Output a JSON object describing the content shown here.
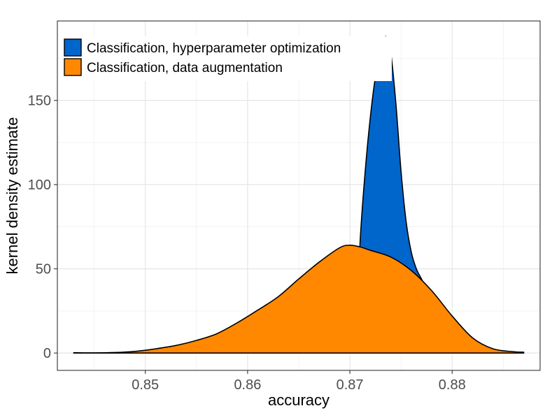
{
  "chart_data": {
    "type": "area",
    "xlabel": "accuracy",
    "ylabel": "kernel density estimate",
    "xlim": [
      0.8414,
      0.8886
    ],
    "ylim": [
      -10.3,
      197.2
    ],
    "x_ticks": [
      0.85,
      0.86,
      0.87,
      0.88
    ],
    "x_tick_labels": [
      "0.85",
      "0.86",
      "0.87",
      "0.88"
    ],
    "y_ticks": [
      0,
      50,
      100,
      150
    ],
    "y_tick_labels": [
      "0",
      "50",
      "100",
      "150"
    ],
    "grid": true,
    "legend_position": "top-left",
    "series": [
      {
        "name": "Classification, hyperparameter optimization",
        "color": "#0066cc",
        "x": [
          0.8705,
          0.871,
          0.8715,
          0.872,
          0.8725,
          0.873,
          0.8735,
          0.874,
          0.8745,
          0.875,
          0.8755,
          0.876,
          0.8765,
          0.877,
          0.8775
        ],
        "y": [
          0,
          66,
          108,
          140,
          164,
          178,
          188,
          178,
          148,
          108,
          78,
          60,
          50,
          44,
          38
        ]
      },
      {
        "name": "Classification, data augmentation",
        "color": "#ff8800",
        "x": [
          0.843,
          0.845,
          0.847,
          0.849,
          0.851,
          0.853,
          0.855,
          0.857,
          0.859,
          0.861,
          0.863,
          0.865,
          0.867,
          0.869,
          0.87,
          0.871,
          0.872,
          0.874,
          0.876,
          0.878,
          0.88,
          0.882,
          0.884,
          0.886,
          0.887
        ],
        "y": [
          0.2,
          0.1,
          0.3,
          1.0,
          2.5,
          4.5,
          7.5,
          11.5,
          18,
          25.5,
          33.5,
          44,
          54,
          62.5,
          64,
          63,
          61,
          57,
          49,
          37,
          22,
          9,
          2.5,
          0.8,
          0.5
        ]
      }
    ]
  }
}
